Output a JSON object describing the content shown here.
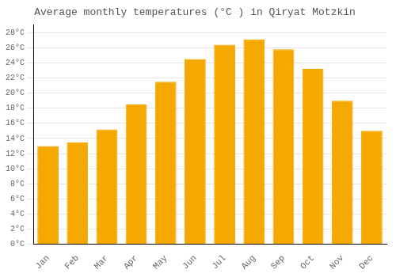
{
  "chart_data": {
    "type": "bar",
    "title": "Average monthly temperatures (°C ) in Qiryat Motzkin",
    "categories": [
      "Jan",
      "Feb",
      "Mar",
      "Apr",
      "May",
      "Jun",
      "Jul",
      "Aug",
      "Sep",
      "Oct",
      "Nov",
      "Dec"
    ],
    "values": [
      13.0,
      13.5,
      15.2,
      18.5,
      21.5,
      24.5,
      26.4,
      27.1,
      25.8,
      23.2,
      19.0,
      15.0
    ],
    "color": "#F5A800",
    "ylim": [
      0,
      29
    ],
    "yticks": [
      {
        "value": 0,
        "label": "0°C"
      },
      {
        "value": 2,
        "label": "2°C"
      },
      {
        "value": 4,
        "label": "4°C"
      },
      {
        "value": 6,
        "label": "6°C"
      },
      {
        "value": 8,
        "label": "8°C"
      },
      {
        "value": 10,
        "label": "10°C"
      },
      {
        "value": 12,
        "label": "12°C"
      },
      {
        "value": 14,
        "label": "14°C"
      },
      {
        "value": 16,
        "label": "16°C"
      },
      {
        "value": 18,
        "label": "18°C"
      },
      {
        "value": 20,
        "label": "20°C"
      },
      {
        "value": 22,
        "label": "22°C"
      },
      {
        "value": 24,
        "label": "24°C"
      },
      {
        "value": 26,
        "label": "26°C"
      },
      {
        "value": 28,
        "label": "28°C"
      }
    ],
    "grid": true
  }
}
